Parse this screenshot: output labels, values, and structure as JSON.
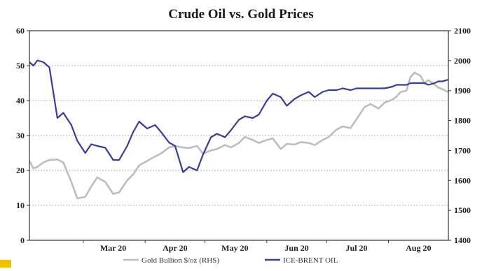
{
  "chart_data": {
    "type": "line",
    "title": "Crude Oil vs. Gold Prices",
    "grid": true,
    "legend_position": "bottom",
    "x_tick_labels": [
      "Mar 20",
      "Apr 20",
      "May 20",
      "Jun 20",
      "Jul 20",
      "Aug 20"
    ],
    "x_tick_dates": [
      "2020-03-01",
      "2020-04-01",
      "2020-05-01",
      "2020-06-01",
      "2020-07-01",
      "2020-08-01"
    ],
    "x_range": [
      "2020-02-03",
      "2020-08-31"
    ],
    "y_left": {
      "ticks": [
        0,
        10,
        20,
        30,
        40,
        50,
        60
      ],
      "range": [
        0,
        60
      ]
    },
    "y_right": {
      "ticks": [
        1400,
        1500,
        1600,
        1700,
        1800,
        1900,
        2000,
        2100
      ],
      "range": [
        1400,
        2100
      ]
    },
    "series": [
      {
        "name": "Gold Bullion $/oz (RHS)",
        "axis": "right",
        "color": "#bdbdbd",
        "points": [
          [
            "2020-02-03",
            1665
          ],
          [
            "2020-02-05",
            1640
          ],
          [
            "2020-02-07",
            1645
          ],
          [
            "2020-02-10",
            1660
          ],
          [
            "2020-02-13",
            1668
          ],
          [
            "2020-02-17",
            1670
          ],
          [
            "2020-02-20",
            1660
          ],
          [
            "2020-02-24",
            1595
          ],
          [
            "2020-02-27",
            1540
          ],
          [
            "2020-03-02",
            1545
          ],
          [
            "2020-03-05",
            1580
          ],
          [
            "2020-03-08",
            1610
          ],
          [
            "2020-03-12",
            1595
          ],
          [
            "2020-03-16",
            1555
          ],
          [
            "2020-03-19",
            1560
          ],
          [
            "2020-03-23",
            1600
          ],
          [
            "2020-03-26",
            1620
          ],
          [
            "2020-03-29",
            1650
          ],
          [
            "2020-04-02",
            1665
          ],
          [
            "2020-04-06",
            1680
          ],
          [
            "2020-04-09",
            1690
          ],
          [
            "2020-04-13",
            1710
          ],
          [
            "2020-04-16",
            1715
          ],
          [
            "2020-04-20",
            1710
          ],
          [
            "2020-04-23",
            1708
          ],
          [
            "2020-04-27",
            1715
          ],
          [
            "2020-04-30",
            1690
          ],
          [
            "2020-05-04",
            1700
          ],
          [
            "2020-05-07",
            1705
          ],
          [
            "2020-05-11",
            1718
          ],
          [
            "2020-05-14",
            1710
          ],
          [
            "2020-05-18",
            1725
          ],
          [
            "2020-05-21",
            1745
          ],
          [
            "2020-05-25",
            1735
          ],
          [
            "2020-05-28",
            1725
          ],
          [
            "2020-06-01",
            1735
          ],
          [
            "2020-06-04",
            1740
          ],
          [
            "2020-06-08",
            1705
          ],
          [
            "2020-06-11",
            1722
          ],
          [
            "2020-06-15",
            1720
          ],
          [
            "2020-06-18",
            1728
          ],
          [
            "2020-06-22",
            1725
          ],
          [
            "2020-06-25",
            1718
          ],
          [
            "2020-06-29",
            1735
          ],
          [
            "2020-07-02",
            1745
          ],
          [
            "2020-07-06",
            1770
          ],
          [
            "2020-07-09",
            1780
          ],
          [
            "2020-07-13",
            1775
          ],
          [
            "2020-07-16",
            1805
          ],
          [
            "2020-07-20",
            1845
          ],
          [
            "2020-07-23",
            1855
          ],
          [
            "2020-07-27",
            1840
          ],
          [
            "2020-07-30",
            1860
          ],
          [
            "2020-08-03",
            1870
          ],
          [
            "2020-08-05",
            1880
          ],
          [
            "2020-08-07",
            1895
          ],
          [
            "2020-08-10",
            1900
          ],
          [
            "2020-08-12",
            1945
          ],
          [
            "2020-08-14",
            1960
          ],
          [
            "2020-08-17",
            1950
          ],
          [
            "2020-08-19",
            1925
          ],
          [
            "2020-08-21",
            1935
          ],
          [
            "2020-08-24",
            1920
          ],
          [
            "2020-08-26",
            1910
          ],
          [
            "2020-08-28",
            1905
          ],
          [
            "2020-08-31",
            1895
          ]
        ]
      },
      {
        "name": "ICE-BRENT OIL",
        "axis": "left",
        "color": "#3b3b9a",
        "points": [
          [
            "2020-02-03",
            51.0
          ],
          [
            "2020-02-05",
            50.0
          ],
          [
            "2020-02-07",
            51.5
          ],
          [
            "2020-02-10",
            51.0
          ],
          [
            "2020-02-13",
            49.5
          ],
          [
            "2020-02-17",
            35.0
          ],
          [
            "2020-02-20",
            36.5
          ],
          [
            "2020-02-24",
            33.0
          ],
          [
            "2020-02-27",
            28.5
          ],
          [
            "2020-03-02",
            25.0
          ],
          [
            "2020-03-05",
            27.5
          ],
          [
            "2020-03-08",
            27.0
          ],
          [
            "2020-03-12",
            26.5
          ],
          [
            "2020-03-16",
            23.0
          ],
          [
            "2020-03-19",
            23.0
          ],
          [
            "2020-03-23",
            27.0
          ],
          [
            "2020-03-26",
            31.0
          ],
          [
            "2020-03-29",
            34.0
          ],
          [
            "2020-04-02",
            32.0
          ],
          [
            "2020-04-06",
            33.0
          ],
          [
            "2020-04-09",
            31.0
          ],
          [
            "2020-04-13",
            28.0
          ],
          [
            "2020-04-16",
            27.0
          ],
          [
            "2020-04-20",
            19.5
          ],
          [
            "2020-04-23",
            21.0
          ],
          [
            "2020-04-27",
            20.0
          ],
          [
            "2020-04-30",
            24.5
          ],
          [
            "2020-05-04",
            29.5
          ],
          [
            "2020-05-07",
            30.5
          ],
          [
            "2020-05-11",
            29.5
          ],
          [
            "2020-05-14",
            31.5
          ],
          [
            "2020-05-18",
            34.5
          ],
          [
            "2020-05-21",
            35.5
          ],
          [
            "2020-05-25",
            35.0
          ],
          [
            "2020-05-28",
            36.0
          ],
          [
            "2020-06-01",
            40.0
          ],
          [
            "2020-06-04",
            42.0
          ],
          [
            "2020-06-08",
            41.0
          ],
          [
            "2020-06-11",
            38.5
          ],
          [
            "2020-06-15",
            40.5
          ],
          [
            "2020-06-18",
            41.5
          ],
          [
            "2020-06-22",
            42.5
          ],
          [
            "2020-06-25",
            41.0
          ],
          [
            "2020-06-29",
            42.5
          ],
          [
            "2020-07-02",
            43.0
          ],
          [
            "2020-07-06",
            43.0
          ],
          [
            "2020-07-09",
            43.5
          ],
          [
            "2020-07-13",
            43.0
          ],
          [
            "2020-07-16",
            43.5
          ],
          [
            "2020-07-20",
            43.5
          ],
          [
            "2020-07-23",
            43.5
          ],
          [
            "2020-07-27",
            43.5
          ],
          [
            "2020-07-30",
            43.5
          ],
          [
            "2020-08-03",
            44.0
          ],
          [
            "2020-08-05",
            44.5
          ],
          [
            "2020-08-07",
            44.5
          ],
          [
            "2020-08-10",
            44.5
          ],
          [
            "2020-08-12",
            45.0
          ],
          [
            "2020-08-14",
            45.0
          ],
          [
            "2020-08-17",
            45.0
          ],
          [
            "2020-08-19",
            45.0
          ],
          [
            "2020-08-21",
            44.5
          ],
          [
            "2020-08-24",
            45.0
          ],
          [
            "2020-08-26",
            45.5
          ],
          [
            "2020-08-28",
            45.5
          ],
          [
            "2020-08-31",
            46.0
          ]
        ]
      }
    ]
  }
}
